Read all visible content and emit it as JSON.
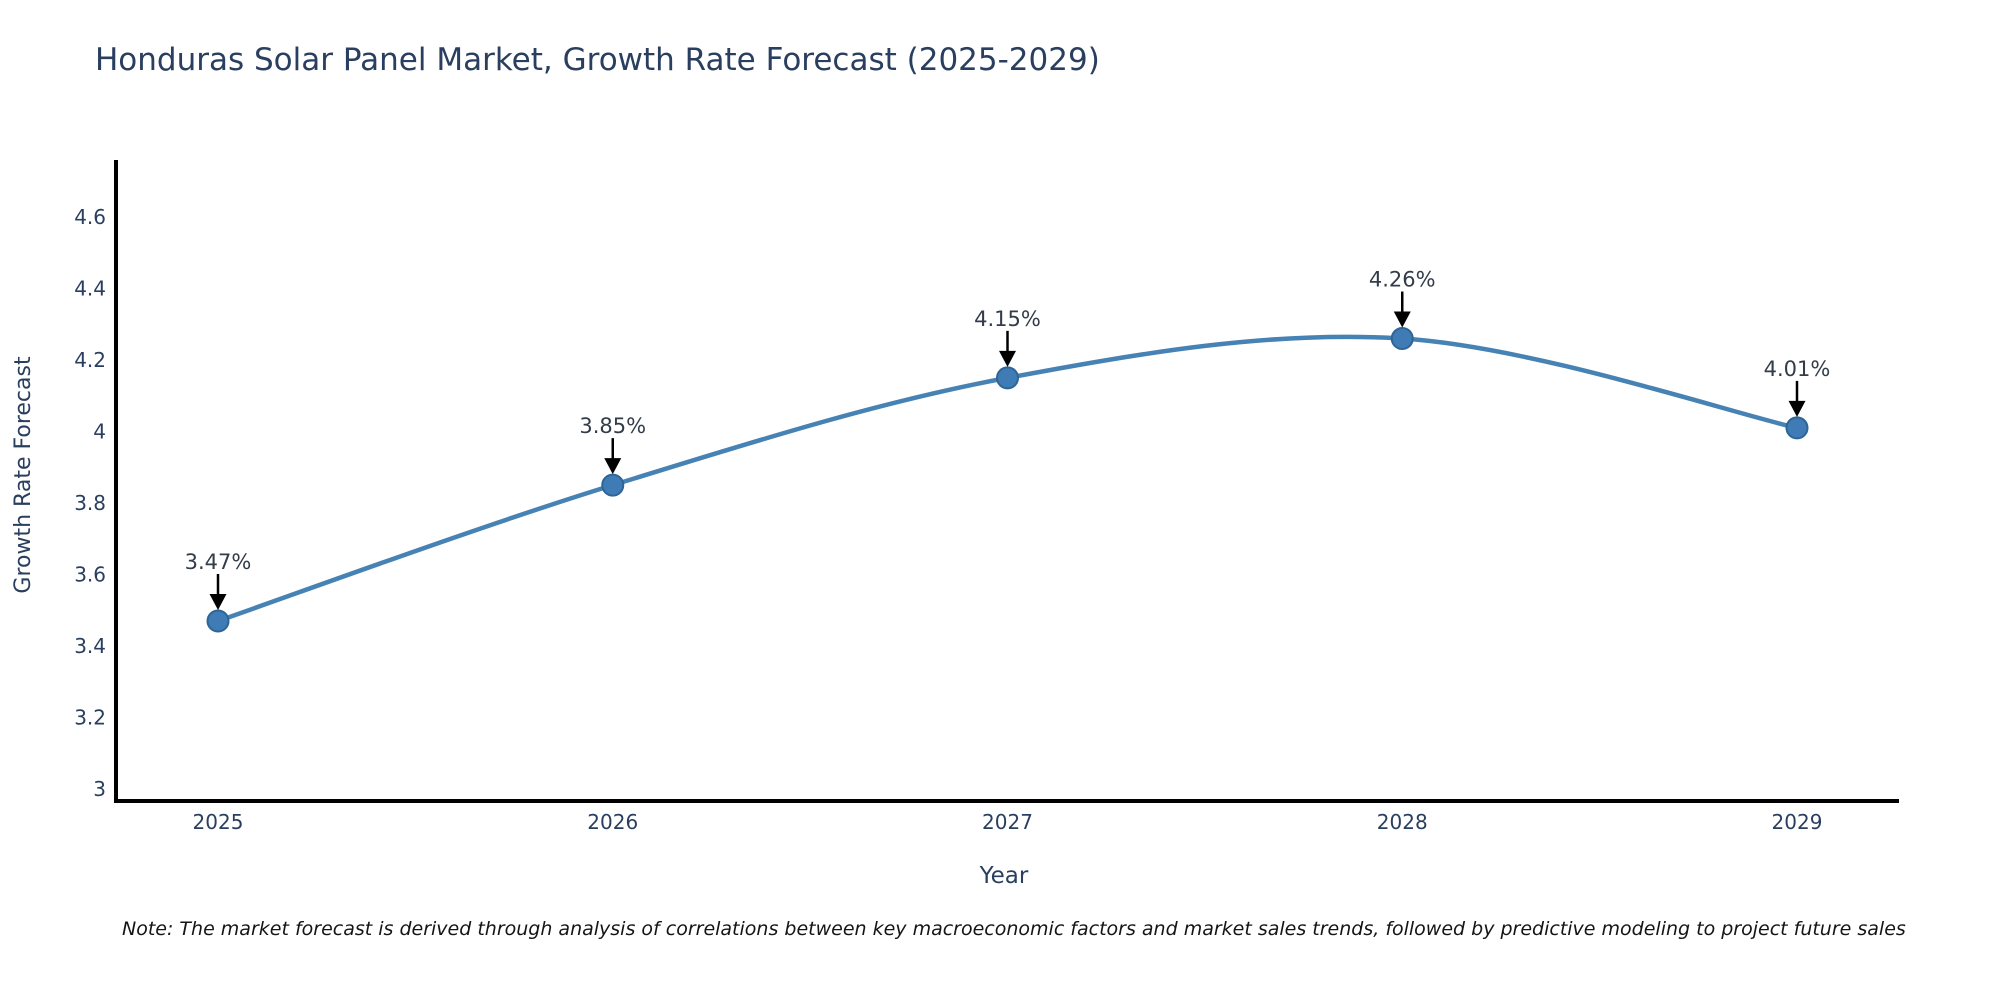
{
  "title": "Honduras Solar Panel Market, Growth Rate Forecast (2025-2029)",
  "note": "Note: The market forecast is derived through analysis of correlations between key macroeconomic factors and market sales trends, followed by predictive modeling to project future sales",
  "chart_data": {
    "type": "line",
    "title": "Honduras Solar Panel Market, Growth Rate Forecast (2025-2029)",
    "xlabel": "Year",
    "ylabel": "Growth Rate Forecast",
    "x": [
      "2025",
      "2026",
      "2027",
      "2028",
      "2029"
    ],
    "series": [
      {
        "name": "Growth Rate Forecast",
        "values": [
          3.47,
          3.85,
          4.15,
          4.26,
          4.01
        ]
      }
    ],
    "point_labels": [
      "3.47%",
      "3.85%",
      "4.15%",
      "4.26%",
      "4.01%"
    ],
    "ylim": [
      3,
      4.6
    ],
    "yticks": [
      {
        "value": 3,
        "label": "3"
      },
      {
        "value": 3.2,
        "label": "3.2"
      },
      {
        "value": 3.4,
        "label": "3.4"
      },
      {
        "value": 3.6,
        "label": "3.6"
      },
      {
        "value": 3.8,
        "label": "3.8"
      },
      {
        "value": 4,
        "label": "4"
      },
      {
        "value": 4.2,
        "label": "4.2"
      },
      {
        "value": 4.4,
        "label": "4.4"
      },
      {
        "value": 4.6,
        "label": "4.6"
      }
    ],
    "grid": false,
    "legend": false,
    "line_style": "spline",
    "colors": {
      "line": "#4682b4",
      "marker_fill": "#3f7cb6",
      "marker_border": "#2f6496",
      "axis": "#000000",
      "tick_text": "#2a3f5f",
      "annotation_text": "#333c49",
      "annotation_arrow": "#000000"
    }
  }
}
